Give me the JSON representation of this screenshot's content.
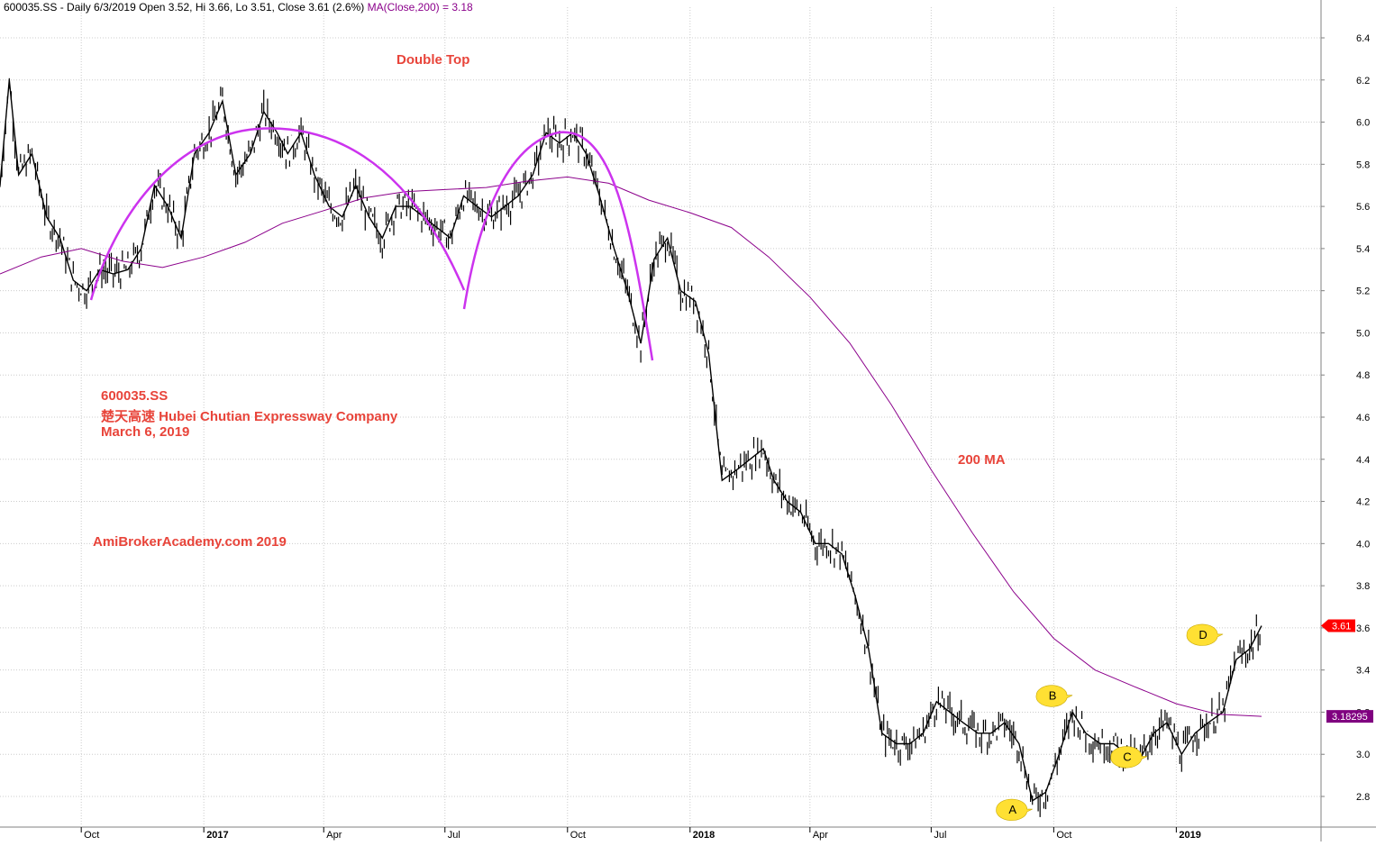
{
  "header": {
    "symbol_line": "600035.SS - Daily 6/3/2019 Open 3.52, Hi 3.66, Lo 3.51, Close 3.61 (2.6%)",
    "ma_line": "MA(Close,200) = 3.18"
  },
  "annotations": {
    "pattern_title": "Double Top",
    "ticker": "600035.SS",
    "company": "楚天高速  Hubei Chutian Expressway Company",
    "date": "March 6, 2019",
    "watermark": "AmiBrokerAcademy.com   2019",
    "ma_label": "200 MA"
  },
  "markers": [
    {
      "label": "A",
      "x": "2018-09-15",
      "y": 2.74
    },
    {
      "label": "B",
      "x": "2018-10-15",
      "y": 3.28
    },
    {
      "label": "C",
      "x": "2018-12-10",
      "y": 2.99
    },
    {
      "label": "D",
      "x": "2019-02-05",
      "y": 3.57
    }
  ],
  "price_tags": {
    "last_close": "3.61",
    "ma_value": "3.18295"
  },
  "colors": {
    "price": "#000000",
    "ma": "#8b008b",
    "pattern_arc": "#cc33ee",
    "annotation": "#e8443a",
    "marker_fill": "#ffe033",
    "close_tag": "#ff0000",
    "ma_tag": "#800080",
    "grid": "#cccccc"
  },
  "chart_data": {
    "type": "line",
    "title": "",
    "xlabel": "",
    "ylabel": "",
    "x_range": [
      "2016-08-01",
      "2019-03-06"
    ],
    "ylim": [
      2.65,
      6.5
    ],
    "grid": true,
    "y_ticks": [
      2.8,
      3.0,
      3.2,
      3.4,
      3.6,
      3.8,
      4.0,
      4.2,
      4.4,
      4.6,
      4.8,
      5.0,
      5.2,
      5.4,
      5.6,
      5.8,
      6.0,
      6.2,
      6.4
    ],
    "x_ticks": [
      {
        "label": "Oct",
        "x": "2016-10-01"
      },
      {
        "label": "2017",
        "x": "2017-01-01"
      },
      {
        "label": "Apr",
        "x": "2017-04-01"
      },
      {
        "label": "Jul",
        "x": "2017-07-01"
      },
      {
        "label": "Oct",
        "x": "2017-10-01"
      },
      {
        "label": "2018",
        "x": "2018-01-01"
      },
      {
        "label": "Apr",
        "x": "2018-04-01"
      },
      {
        "label": "Jul",
        "x": "2018-07-01"
      },
      {
        "label": "Oct",
        "x": "2018-10-01"
      },
      {
        "label": "2019",
        "x": "2019-01-01"
      }
    ],
    "series": [
      {
        "name": "600035.SS",
        "x": [
          "2016-08-01",
          "2016-08-08",
          "2016-08-15",
          "2016-08-25",
          "2016-09-05",
          "2016-09-15",
          "2016-09-25",
          "2016-10-05",
          "2016-10-15",
          "2016-10-25",
          "2016-11-05",
          "2016-11-15",
          "2016-11-25",
          "2016-12-05",
          "2016-12-15",
          "2016-12-25",
          "2017-01-05",
          "2017-01-15",
          "2017-01-25",
          "2017-02-05",
          "2017-02-15",
          "2017-02-25",
          "2017-03-05",
          "2017-03-15",
          "2017-03-25",
          "2017-04-05",
          "2017-04-15",
          "2017-04-25",
          "2017-05-05",
          "2017-05-15",
          "2017-05-25",
          "2017-06-05",
          "2017-06-15",
          "2017-06-25",
          "2017-07-05",
          "2017-07-15",
          "2017-07-25",
          "2017-08-05",
          "2017-08-15",
          "2017-08-25",
          "2017-09-05",
          "2017-09-15",
          "2017-09-25",
          "2017-10-05",
          "2017-10-15",
          "2017-10-25",
          "2017-11-05",
          "2017-11-15",
          "2017-11-25",
          "2017-12-05",
          "2017-12-15",
          "2017-12-25",
          "2018-01-05",
          "2018-01-15",
          "2018-01-25",
          "2018-02-05",
          "2018-02-15",
          "2018-02-25",
          "2018-03-05",
          "2018-03-15",
          "2018-03-25",
          "2018-04-05",
          "2018-04-15",
          "2018-04-25",
          "2018-05-05",
          "2018-05-15",
          "2018-05-25",
          "2018-06-05",
          "2018-06-15",
          "2018-06-25",
          "2018-07-05",
          "2018-07-15",
          "2018-07-25",
          "2018-08-05",
          "2018-08-15",
          "2018-08-25",
          "2018-09-05",
          "2018-09-15",
          "2018-09-25",
          "2018-10-05",
          "2018-10-15",
          "2018-10-25",
          "2018-11-05",
          "2018-11-15",
          "2018-11-25",
          "2018-12-05",
          "2018-12-15",
          "2018-12-25",
          "2019-01-05",
          "2019-01-15",
          "2019-01-25",
          "2019-02-05",
          "2019-02-15",
          "2019-02-25",
          "2019-03-06"
        ],
        "values": [
          5.7,
          6.2,
          5.75,
          5.85,
          5.55,
          5.45,
          5.25,
          5.2,
          5.3,
          5.28,
          5.3,
          5.4,
          5.7,
          5.6,
          5.45,
          5.85,
          5.95,
          6.1,
          5.75,
          5.85,
          6.05,
          5.95,
          5.85,
          5.95,
          5.75,
          5.6,
          5.55,
          5.7,
          5.55,
          5.45,
          5.6,
          5.6,
          5.55,
          5.5,
          5.45,
          5.65,
          5.6,
          5.55,
          5.6,
          5.65,
          5.75,
          5.95,
          5.9,
          5.95,
          5.85,
          5.65,
          5.4,
          5.2,
          4.95,
          5.35,
          5.45,
          5.2,
          5.15,
          4.9,
          4.3,
          4.35,
          4.4,
          4.45,
          4.3,
          4.2,
          4.15,
          4.0,
          4.0,
          3.95,
          3.75,
          3.5,
          3.1,
          3.05,
          3.05,
          3.1,
          3.25,
          3.2,
          3.15,
          3.1,
          3.1,
          3.15,
          3.05,
          2.78,
          2.82,
          3.0,
          3.2,
          3.1,
          3.05,
          3.05,
          3.0,
          2.98,
          3.1,
          3.15,
          3.0,
          3.1,
          3.15,
          3.2,
          3.45,
          3.5,
          3.61
        ]
      },
      {
        "name": "MA(Close,200)",
        "x": [
          "2016-08-01",
          "2016-09-01",
          "2016-10-01",
          "2016-11-01",
          "2016-12-01",
          "2017-01-01",
          "2017-02-01",
          "2017-03-01",
          "2017-04-01",
          "2017-05-01",
          "2017-06-01",
          "2017-07-01",
          "2017-08-01",
          "2017-09-01",
          "2017-10-01",
          "2017-11-01",
          "2017-12-01",
          "2018-01-01",
          "2018-02-01",
          "2018-03-01",
          "2018-04-01",
          "2018-05-01",
          "2018-06-01",
          "2018-07-01",
          "2018-08-01",
          "2018-09-01",
          "2018-10-01",
          "2018-11-01",
          "2018-12-01",
          "2019-01-01",
          "2019-02-01",
          "2019-03-06"
        ],
        "values": [
          5.28,
          5.36,
          5.4,
          5.34,
          5.31,
          5.36,
          5.43,
          5.52,
          5.58,
          5.64,
          5.67,
          5.68,
          5.69,
          5.72,
          5.74,
          5.71,
          5.63,
          5.57,
          5.5,
          5.36,
          5.17,
          4.95,
          4.66,
          4.35,
          4.05,
          3.77,
          3.55,
          3.4,
          3.32,
          3.24,
          3.19,
          3.18
        ]
      }
    ]
  }
}
